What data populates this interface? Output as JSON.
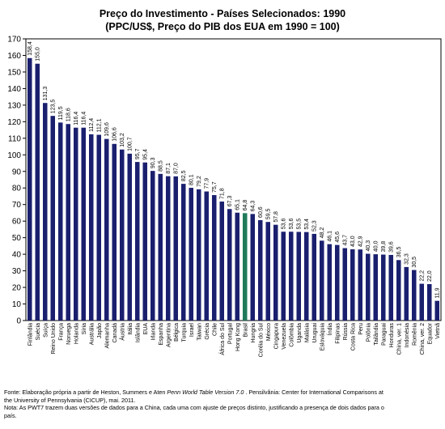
{
  "chart_data": {
    "type": "bar",
    "title": "Preço do Investimento - Países Selecionados: 1990",
    "subtitle": "(PPC/US$, Preço do PIB dos EUA em 1990 = 100)",
    "ylim": [
      0,
      170
    ],
    "yticks": [
      0,
      10,
      20,
      30,
      40,
      50,
      60,
      70,
      80,
      90,
      100,
      110,
      120,
      130,
      140,
      150,
      160,
      170
    ],
    "grid": false,
    "bar_color": "#1a1f6e",
    "highlight_color": "#1f7a5a",
    "highlight_category": "Brasil",
    "categories": [
      "Finlândia",
      "Suécia",
      "Suíça",
      "Reino Unido",
      "França",
      "Noruega",
      "Holanda",
      "Síria",
      "Austrália",
      "Japão",
      "Alemanha",
      "Canadá",
      "Áustria",
      "Itália",
      "Islândia",
      "EUA",
      "Irlanda",
      "Espanha",
      "Argentina",
      "Bélgica",
      "Turquia",
      "Israel",
      "Taiwan",
      "Grécia",
      "Chile",
      "África do Sul",
      "Portugal",
      "Hong Kong",
      "Brasil",
      "Hungria",
      "Coréia do Sul",
      "México",
      "Cingapura",
      "Venezuela",
      "Colômbia",
      "Uganda",
      "Malásia",
      "Uruguai",
      "Eslováquia",
      "Índia",
      "Filipinas",
      "Rússia",
      "Costa Rica",
      "Peru",
      "Polônia",
      "Tailândia",
      "Paraguai",
      "Honduras",
      "China, ver. 1",
      "Indonésia",
      "Romênia",
      "China, ver. 2",
      "Equador",
      "Vietnã"
    ],
    "values": [
      158.4,
      155.0,
      131.3,
      123.5,
      119.5,
      118.6,
      116.4,
      116.4,
      112.4,
      112.1,
      109.6,
      106.6,
      103.2,
      100.7,
      95.7,
      95.4,
      90.3,
      88.5,
      87.1,
      87.0,
      82.5,
      80.1,
      79.2,
      77.9,
      75.7,
      71.8,
      67.3,
      65.1,
      64.8,
      64.3,
      60.6,
      59.5,
      57.8,
      53.6,
      53.6,
      53.5,
      53.4,
      52.3,
      48.2,
      46.1,
      45.6,
      43.7,
      43.0,
      42.9,
      40.3,
      40.0,
      39.8,
      39.6,
      36.5,
      32.3,
      30.5,
      22.2,
      22.0,
      11.9
    ],
    "value_labels": [
      "158,4",
      "155,0",
      "131,3",
      "123,5",
      "119,5",
      "118,6",
      "116,4",
      "116,4",
      "112,4",
      "112,1",
      "109,6",
      "106,6",
      "103,2",
      "100,7",
      "95,7",
      "95,4",
      "90,3",
      "88,5",
      "87,1",
      "87,0",
      "82,5",
      "80,1",
      "79,2",
      "77,9",
      "75,7",
      "71,8",
      "67,3",
      "65,1",
      "64,8",
      "64,3",
      "60,6",
      "59,5",
      "57,8",
      "53,6",
      "53,6",
      "53,5",
      "53,4",
      "52,3",
      "48,2",
      "46,1",
      "45,6",
      "43,7",
      "43,0",
      "42,9",
      "40,3",
      "40,0",
      "39,8",
      "39,6",
      "36,5",
      "32,3",
      "30,5",
      "22,2",
      "22,0",
      "11,9"
    ]
  },
  "source_note": {
    "line1_a": "Fonte: Elaboração própria a partir de Heston, Summers e Aten ",
    "line1_italic": "Penn World Table Version 7.0",
    "line1_b": " . Pensilvânia: Center for International Comparisons at",
    "line2": "the University of Pennsylvania (CICUP), mai. 2011.",
    "line3": "Nota: As PWT7 trazem duas versões de dados para a China, cada uma com ajuste de preços distinto, justificando a presença de dois dados para o",
    "line4": "país."
  }
}
